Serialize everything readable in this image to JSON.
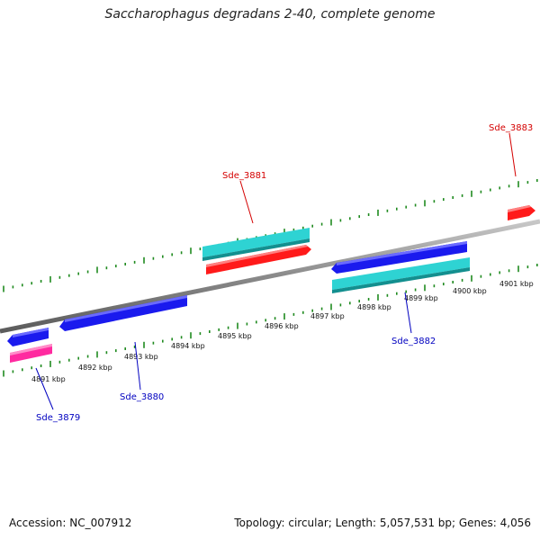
{
  "title": "Saccharophagus degradans 2-40, complete genome",
  "footer": {
    "accession": "Accession: NC_007912",
    "summary": "Topology: circular; Length: 5,057,531 bp; Genes: 4,056"
  },
  "colors": {
    "backbone": "#8a8a8a",
    "ticks": "#1f8a1f",
    "gene_red": "#ff1a1a",
    "gene_blue": "#1a1aee",
    "gene_cyan": "#2ed3d3",
    "gene_magenta": "#ff2aa0",
    "label_red": "#d40000",
    "label_blue": "#0000c0"
  },
  "ruler": {
    "labels": [
      "4891 kbp",
      "4892 kbp",
      "4893 kbp",
      "4894 kbp",
      "4895 kbp",
      "4896 kbp",
      "4897 kbp",
      "4898 kbp",
      "4899 kbp",
      "4900 kbp",
      "4901 kbp"
    ]
  },
  "gene_labels": [
    {
      "text": "Sde_3879",
      "color": "blue"
    },
    {
      "text": "Sde_3880",
      "color": "blue"
    },
    {
      "text": "Sde_3881",
      "color": "red"
    },
    {
      "text": "Sde_3882",
      "color": "blue"
    },
    {
      "text": "Sde_3883",
      "color": "red"
    }
  ]
}
